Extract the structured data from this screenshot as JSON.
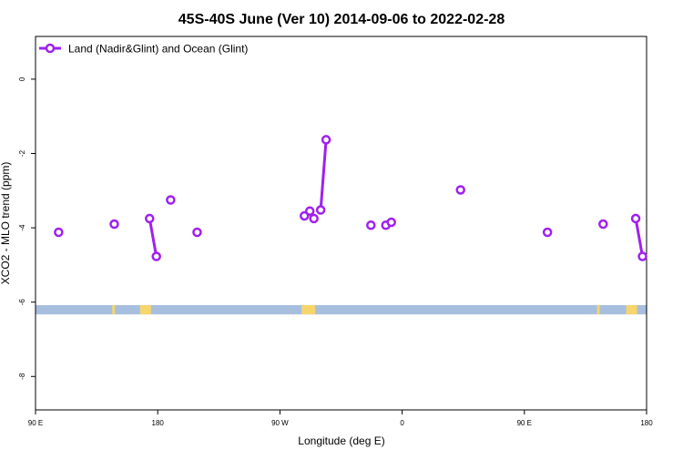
{
  "chart_data": {
    "type": "line",
    "title": "45S-40S June (Ver 10)   2014-09-06 to 2022-02-28",
    "xlabel": "Longitude (deg E)",
    "ylabel": "XCO2 - MLO trend (ppm)",
    "xlim": [
      90,
      540
    ],
    "ylim": [
      -8.9,
      1.15
    ],
    "x_ticks": [
      {
        "value": 90,
        "label": "90 E"
      },
      {
        "value": 180,
        "label": "180"
      },
      {
        "value": 270,
        "label": "90 W"
      },
      {
        "value": 360,
        "label": "0"
      },
      {
        "value": 450,
        "label": "90 E"
      },
      {
        "value": 540,
        "label": "180"
      }
    ],
    "y_ticks": [
      {
        "value": 0,
        "label": "0"
      },
      {
        "value": -2,
        "label": "-2"
      },
      {
        "value": -4,
        "label": "-4"
      },
      {
        "value": -6,
        "label": "-6"
      },
      {
        "value": -8,
        "label": "-8"
      }
    ],
    "legend": {
      "position": "top-left"
    },
    "series": [
      {
        "name": "Land (Nadir&Glint) and Ocean (Glint)",
        "color": "#a020f0",
        "segments": [
          [
            {
              "x": 107,
              "y": -4.12
            }
          ],
          [
            {
              "x": 148,
              "y": -3.9
            }
          ],
          [
            {
              "x": 174,
              "y": -3.75
            },
            {
              "x": 179,
              "y": -4.77
            }
          ],
          [
            {
              "x": 189.5,
              "y": -3.25
            }
          ],
          [
            {
              "x": 209,
              "y": -4.12
            }
          ],
          [
            {
              "x": 288,
              "y": -3.68
            }
          ],
          [
            {
              "x": 292,
              "y": -3.55
            }
          ],
          [
            {
              "x": 295,
              "y": -3.75
            }
          ],
          [
            {
              "x": 300,
              "y": -3.52
            },
            {
              "x": 304,
              "y": -1.63
            }
          ],
          [
            {
              "x": 337,
              "y": -3.93
            }
          ],
          [
            {
              "x": 348,
              "y": -3.93
            }
          ],
          [
            {
              "x": 352,
              "y": -3.85
            }
          ],
          [
            {
              "x": 403,
              "y": -2.98
            }
          ],
          [
            {
              "x": 467,
              "y": -4.12
            }
          ],
          [
            {
              "x": 508,
              "y": -3.9
            }
          ],
          [
            {
              "x": 532,
              "y": -3.75
            },
            {
              "x": 537,
              "y": -4.77
            }
          ]
        ]
      }
    ],
    "map_strip": {
      "y_range": [
        -6.33,
        -6.08
      ],
      "ocean_color": "#a7bfdf",
      "land_color": "#f6d56a",
      "land_x_ranges": [
        [
          146.5,
          148.5
        ],
        [
          167,
          175
        ],
        [
          286,
          296
        ],
        [
          503.5,
          505.5
        ],
        [
          525,
          533
        ]
      ]
    }
  }
}
